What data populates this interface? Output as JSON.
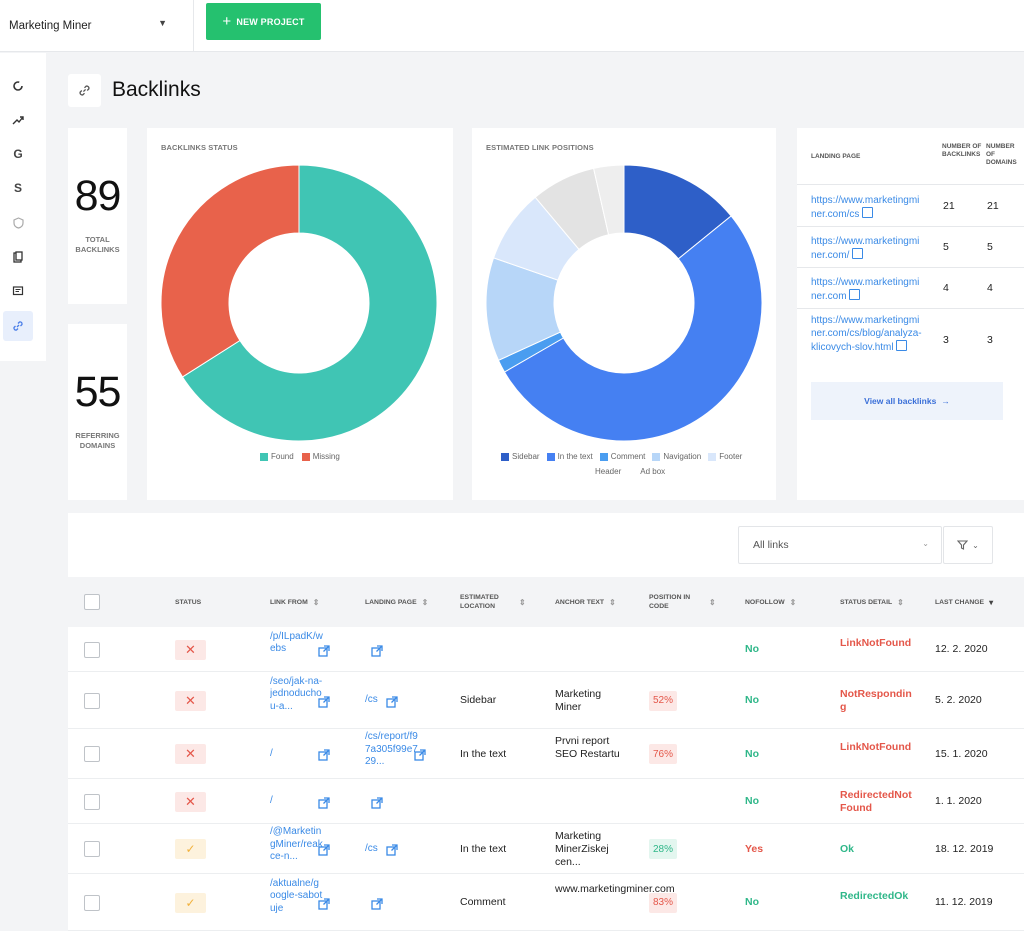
{
  "topbar": {
    "project_name": "Marketing Miner",
    "new_project_label": "NEW PROJECT"
  },
  "sidebar": {
    "items": [
      {
        "icon": "dashboard-icon"
      },
      {
        "icon": "trend-icon"
      },
      {
        "icon": "google-icon",
        "glyph": "G"
      },
      {
        "icon": "seznam-icon",
        "glyph": "S"
      },
      {
        "icon": "shield-icon"
      },
      {
        "icon": "pages-icon"
      },
      {
        "icon": "comment-icon"
      },
      {
        "icon": "link-icon",
        "active": true
      }
    ]
  },
  "page": {
    "title": "Backlinks"
  },
  "stats": {
    "total_backlinks": "89",
    "total_backlinks_label": "TOTAL BACKLINKS",
    "referring_domains": "55",
    "referring_domains_label": "REFERRING DOMAINS"
  },
  "status_chart": {
    "title": "BACKLINKS STATUS",
    "legend": [
      "Found",
      "Missing"
    ]
  },
  "positions_chart": {
    "title": "ESTIMATED LINK POSITIONS",
    "legend": [
      "Sidebar",
      "In the text",
      "Comment",
      "Navigation",
      "Footer",
      "Header",
      "Ad box"
    ]
  },
  "chart_data": [
    {
      "type": "pie",
      "title": "BACKLINKS STATUS",
      "categories": [
        "Found",
        "Missing"
      ],
      "values": [
        66,
        34
      ],
      "colors": [
        "#40c5b4",
        "#e8624b"
      ]
    },
    {
      "type": "pie",
      "title": "ESTIMATED LINK POSITIONS",
      "categories": [
        "Sidebar",
        "In the text",
        "Comment",
        "Navigation",
        "Footer",
        "Header",
        "Ad box"
      ],
      "values": [
        14,
        52,
        1.5,
        12,
        8.5,
        7.5,
        3.5
      ],
      "colors": [
        "#2e5fc8",
        "#4580f2",
        "#4a9df0",
        "#b7d6f8",
        "#d9e7fb",
        "#e3e3e3",
        "#eeeeee"
      ]
    }
  ],
  "landing_pages": {
    "headers": [
      "LANDING PAGE",
      "NUMBER OF BACKLINKS",
      "NUMBER OF DOMAINS"
    ],
    "rows": [
      {
        "url": "https://www.marketingminer.com/cs",
        "backlinks": "21",
        "domains": "21"
      },
      {
        "url": "https://www.marketingminer.com/",
        "backlinks": "5",
        "domains": "5"
      },
      {
        "url": "https://www.marketingminer.com",
        "backlinks": "4",
        "domains": "4"
      },
      {
        "url": "https://www.marketingminer.com/cs/blog/analyza-klicovych-slov.html",
        "backlinks": "3",
        "domains": "3"
      }
    ],
    "view_all_label": "View all backlinks"
  },
  "filters": {
    "select_value": "All links"
  },
  "table": {
    "headers": {
      "status": "STATUS",
      "link_from": "LINK FROM",
      "landing_page": "LANDING PAGE",
      "estimated_location": "ESTIMATED LOCATION",
      "anchor_text": "ANCHOR TEXT",
      "position_in_code": "POSITION IN CODE",
      "nofollow": "NOFOLLOW",
      "status_detail": "STATUS DETAIL",
      "last_change": "LAST CHANGE"
    },
    "rows": [
      {
        "ok": false,
        "link_from": "/p/ILpadK/webs",
        "landing_page": "",
        "location": "",
        "anchor": "",
        "position": "",
        "position_color": "",
        "nofollow": "No",
        "detail": "LinkNotFound",
        "detail_ok": false,
        "date": "12. 2. 2020"
      },
      {
        "ok": false,
        "link_from": "/seo/jak-na-jednoduchou-a...",
        "landing_page": "/cs",
        "location": "Sidebar",
        "anchor": "Marketing Miner",
        "position": "52%",
        "position_color": "red",
        "nofollow": "No",
        "detail": "NotResponding",
        "detail_ok": false,
        "date": "5. 2. 2020"
      },
      {
        "ok": false,
        "link_from": "/",
        "landing_page": "/cs/report/f97a305f99e729...",
        "location": "In the text",
        "anchor": "Prvni report SEO Restartu",
        "position": "76%",
        "position_color": "red",
        "nofollow": "No",
        "detail": "LinkNotFound",
        "detail_ok": false,
        "date": "15. 1. 2020"
      },
      {
        "ok": false,
        "link_from": "/",
        "landing_page": "",
        "location": "",
        "anchor": "",
        "position": "",
        "position_color": "",
        "nofollow": "No",
        "detail": "RedirectedNotFound",
        "detail_ok": false,
        "date": "1. 1. 2020"
      },
      {
        "ok": true,
        "link_from": "/@MarketingMiner/reakce-n...",
        "landing_page": "/cs",
        "location": "In the text",
        "anchor": "Marketing MinerZiskej cen...",
        "position": "28%",
        "position_color": "green",
        "nofollow": "Yes",
        "detail": "Ok",
        "detail_ok": true,
        "date": "18. 12. 2019"
      },
      {
        "ok": true,
        "link_from": "/aktualne/google-sabotuje",
        "landing_page": "",
        "location": "Comment",
        "anchor": "www.marketingminer.com",
        "position": "83%",
        "position_color": "red",
        "nofollow": "No",
        "detail": "RedirectedOk",
        "detail_ok": true,
        "date": "11. 12. 2019"
      }
    ]
  }
}
